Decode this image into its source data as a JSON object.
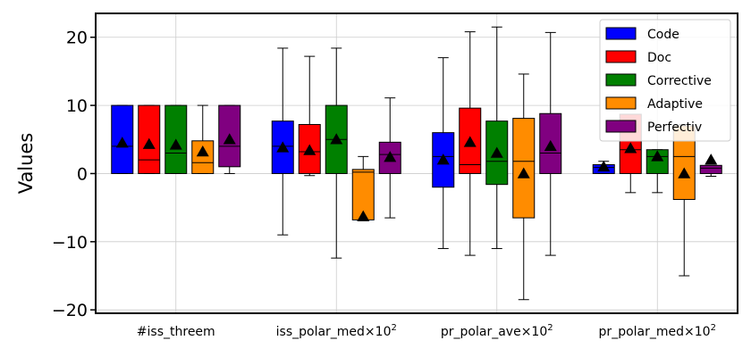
{
  "chart_data": {
    "type": "boxplot",
    "ylabel": "Values",
    "ylim": [
      -20.5,
      23.5
    ],
    "yticks": [
      -20,
      -10,
      0,
      10,
      20
    ],
    "ytick_labels": [
      "−20",
      "−10",
      "0",
      "10",
      "20"
    ],
    "grid": true,
    "legend_position": "top-right",
    "categories": [
      {
        "label": "#iss_threem",
        "sup": ""
      },
      {
        "label": "iss_polar_med×10",
        "sup": "2"
      },
      {
        "label": "pr_polar_ave×10",
        "sup": "2"
      },
      {
        "label": "pr_polar_med×10",
        "sup": "2"
      }
    ],
    "series": [
      {
        "name": "Code",
        "color": "#0000ff",
        "boxes": [
          {
            "whislo": 0,
            "q1": 0,
            "med": 4,
            "q3": 10,
            "whishi": 10,
            "mean": 4.5
          },
          {
            "whislo": -9,
            "q1": 0,
            "med": 4,
            "q3": 7.7,
            "whishi": 18.4,
            "mean": 3.8
          },
          {
            "whislo": -11,
            "q1": -2,
            "med": 2.5,
            "q3": 6,
            "whishi": 17,
            "mean": 2
          },
          {
            "whislo": 0,
            "q1": 0,
            "med": 0.9,
            "q3": 1.3,
            "whishi": 1.8,
            "mean": 1
          }
        ]
      },
      {
        "name": "Doc",
        "color": "#ff0000",
        "boxes": [
          {
            "whislo": 0,
            "q1": 0,
            "med": 2,
            "q3": 10,
            "whishi": 10,
            "mean": 4.3
          },
          {
            "whislo": -0.3,
            "q1": 0,
            "med": 3.2,
            "q3": 7.2,
            "whishi": 17.2,
            "mean": 3.4
          },
          {
            "whislo": -12,
            "q1": 0,
            "med": 1.3,
            "q3": 9.6,
            "whishi": 20.8,
            "mean": 4.6
          },
          {
            "whislo": -2.8,
            "q1": 0,
            "med": 3.5,
            "q3": 8.7,
            "whishi": 8.7,
            "mean": 3.7
          }
        ]
      },
      {
        "name": "Corrective",
        "color": "#008000",
        "boxes": [
          {
            "whislo": 0,
            "q1": 0,
            "med": 3,
            "q3": 10,
            "whishi": 10,
            "mean": 4.2
          },
          {
            "whislo": -12.4,
            "q1": 0,
            "med": 5,
            "q3": 10,
            "whishi": 18.4,
            "mean": 5
          },
          {
            "whislo": -11,
            "q1": -1.6,
            "med": 1.8,
            "q3": 7.7,
            "whishi": 21.5,
            "mean": 3
          },
          {
            "whislo": -2.8,
            "q1": 0,
            "med": 2.5,
            "q3": 3.5,
            "whishi": 3.5,
            "mean": 2.5
          }
        ]
      },
      {
        "name": "Adaptive",
        "color": "#ff8c00",
        "boxes": [
          {
            "whislo": 0,
            "q1": 0,
            "med": 1.6,
            "q3": 4.8,
            "whishi": 10,
            "mean": 3.2
          },
          {
            "whislo": -6.8,
            "q1": -6.8,
            "med": 0.2,
            "q3": 0.6,
            "whishi": 2.5,
            "mean": -6.3
          },
          {
            "whislo": -18.5,
            "q1": -6.5,
            "med": 1.8,
            "q3": 8.1,
            "whishi": 14.6,
            "mean": 0
          },
          {
            "whislo": -15,
            "q1": -3.8,
            "med": 2.5,
            "q3": 7,
            "whishi": 7.2,
            "mean": 0
          }
        ]
      },
      {
        "name": "Perfectiv",
        "color": "#800080",
        "boxes": [
          {
            "whislo": 0,
            "q1": 1,
            "med": 4,
            "q3": 10,
            "whishi": 10,
            "mean": 5
          },
          {
            "whislo": -6.5,
            "q1": 0,
            "med": 2.8,
            "q3": 4.6,
            "whishi": 11.1,
            "mean": 2.4
          },
          {
            "whislo": -12,
            "q1": 0,
            "med": 3,
            "q3": 8.8,
            "whishi": 20.7,
            "mean": 4
          },
          {
            "whislo": -0.4,
            "q1": 0,
            "med": 0.8,
            "q3": 1.2,
            "whishi": 1.2,
            "mean": 2
          }
        ]
      }
    ]
  }
}
